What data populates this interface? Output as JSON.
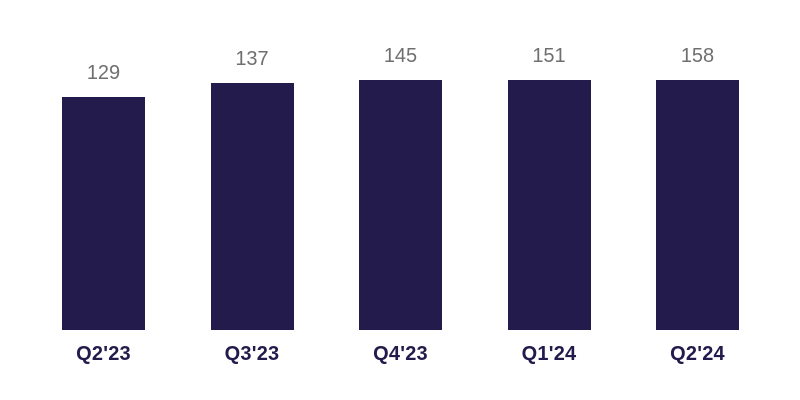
{
  "chart_data": {
    "type": "bar",
    "categories": [
      "Q2'23",
      "Q3'23",
      "Q4'23",
      "Q1'24",
      "Q2'24"
    ],
    "values": [
      129,
      137,
      145,
      151,
      158
    ],
    "title": "",
    "xlabel": "",
    "ylabel": "",
    "ylim": [
      0,
      158
    ],
    "grid": false,
    "legend": false,
    "axes_visible": false,
    "data_labels": true,
    "colors": {
      "bar": "#221B4C",
      "value_label": "#6F6F6F",
      "category_label": "#221B4C",
      "background": "#FFFFFF"
    }
  }
}
